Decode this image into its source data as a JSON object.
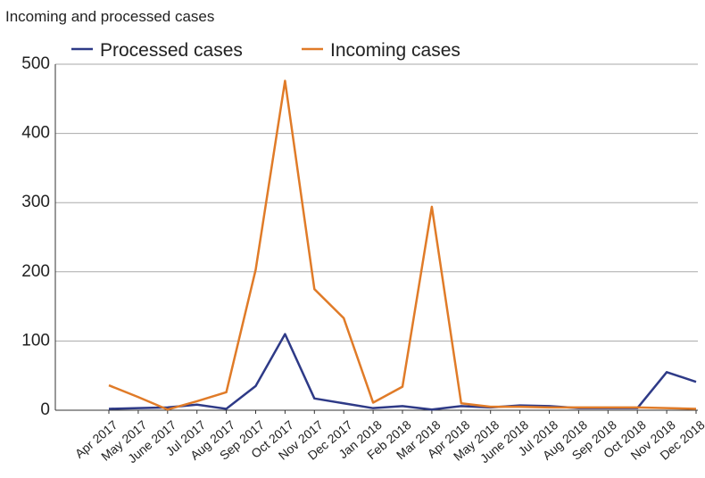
{
  "chart_data": {
    "type": "line",
    "title": "Incoming and processed cases",
    "categories": [
      "Apr 2017",
      "May 2017",
      "June 2017",
      "Jul 2017",
      "Aug 2017",
      "Sep 2017",
      "Oct 2017",
      "Nov 2017",
      "Dec 2017",
      "Jan 2018",
      "Feb 2018",
      "Mar 2018",
      "Apr 2018",
      "May 2018",
      "June 2018",
      "Jul 2018",
      "Aug 2018",
      "Sep 2018",
      "Oct 2018",
      "Nov 2018",
      "Dec 2018"
    ],
    "series": [
      {
        "name": "Processed cases",
        "color": "#2e3a87",
        "values": [
          2,
          3,
          4,
          8,
          2,
          35,
          110,
          17,
          10,
          3,
          6,
          1,
          6,
          4,
          7,
          6,
          3,
          3,
          3,
          55,
          41
        ]
      },
      {
        "name": "Incoming cases",
        "color": "#e07b28",
        "values": [
          36,
          19,
          1,
          13,
          26,
          203,
          476,
          175,
          133,
          11,
          34,
          294,
          10,
          5,
          5,
          4,
          4,
          4,
          4,
          3,
          2
        ]
      }
    ],
    "ylim": [
      0,
      500
    ],
    "yticks": [
      0,
      100,
      200,
      300,
      400,
      500
    ],
    "grid": true,
    "legend": "top"
  }
}
